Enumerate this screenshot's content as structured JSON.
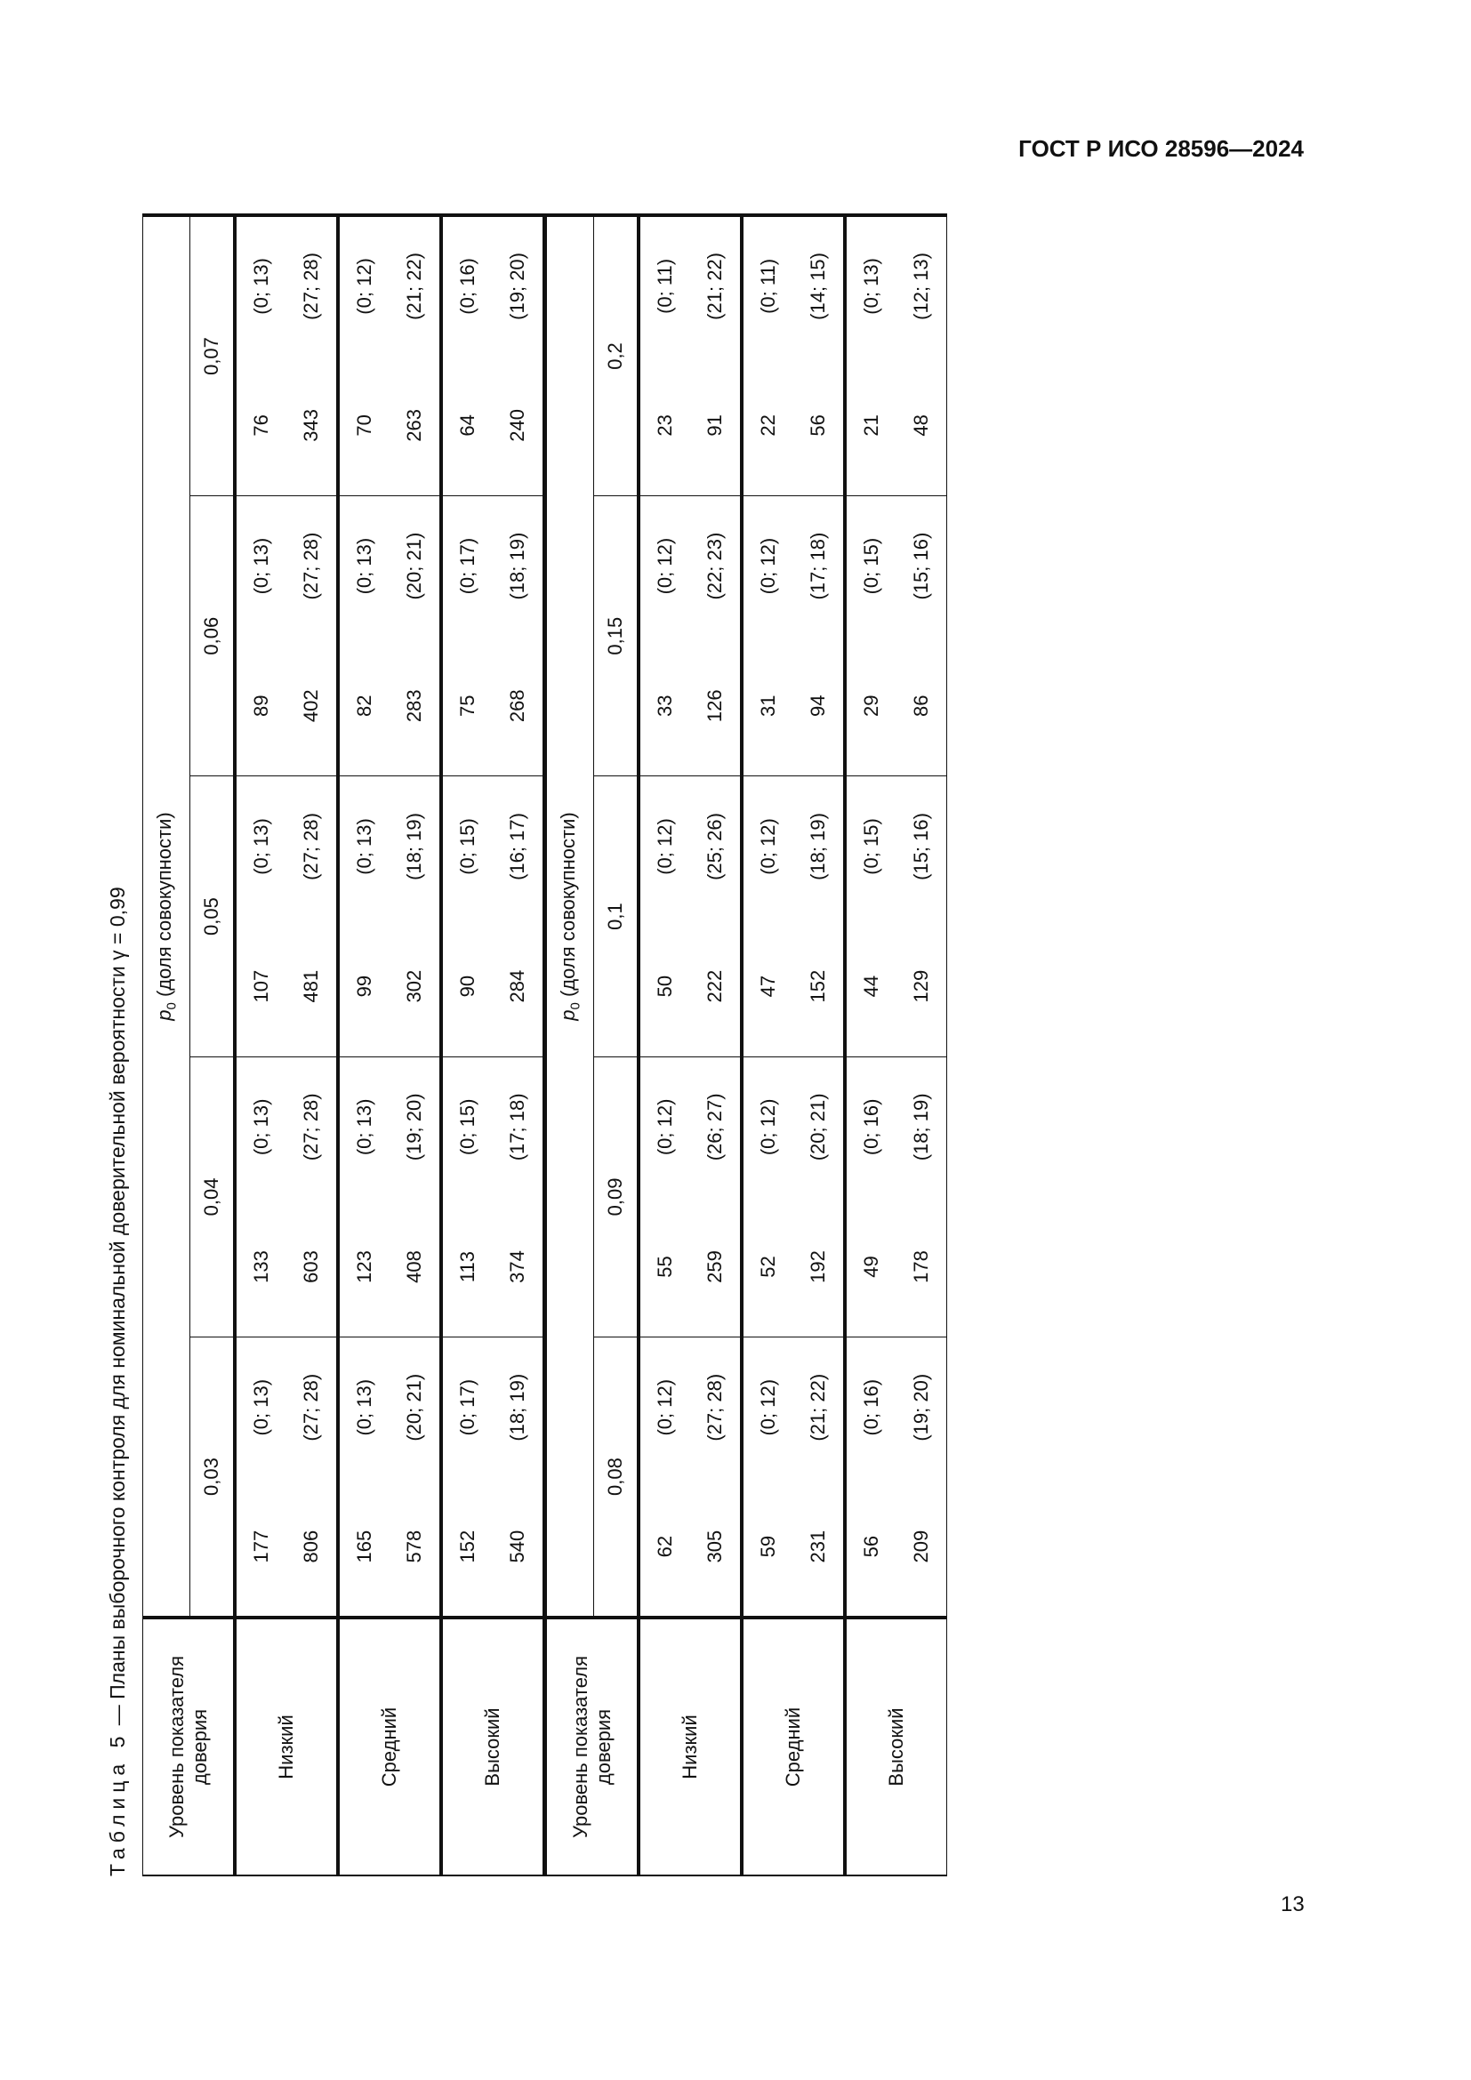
{
  "doc_header": "ГОСТ Р ИСО 28596—2024",
  "page_number": "13",
  "caption": {
    "label": "Таблица 5",
    "text": " — Планы выборочного контроля для номинальной доверительной вероятности γ = 0,99"
  },
  "level_header": "Уровень показателя доверия",
  "p_label": {
    "symbol": "p",
    "subscript": "0",
    "text": " (доля совокупности)"
  },
  "tables": [
    {
      "p_values": [
        "0,03",
        "0,04",
        "0,05",
        "0,06",
        "0,07"
      ],
      "rows": [
        {
          "level": "Низкий",
          "line1": [
            "177",
            "(0; 13)",
            "133",
            "(0; 13)",
            "107",
            "(0; 13)",
            "89",
            "(0; 13)",
            "76",
            "(0; 13)"
          ],
          "line2": [
            "806",
            "(27; 28)",
            "603",
            "(27; 28)",
            "481",
            "(27; 28)",
            "402",
            "(27; 28)",
            "343",
            "(27; 28)"
          ]
        },
        {
          "level": "Средний",
          "line1": [
            "165",
            "(0; 13)",
            "123",
            "(0; 13)",
            "99",
            "(0; 13)",
            "82",
            "(0; 13)",
            "70",
            "(0; 12)"
          ],
          "line2": [
            "578",
            "(20; 21)",
            "408",
            "(19; 20)",
            "302",
            "(18; 19)",
            "283",
            "(20; 21)",
            "263",
            "(21; 22)"
          ]
        },
        {
          "level": "Высокий",
          "line1": [
            "152",
            "(0; 17)",
            "113",
            "(0; 15)",
            "90",
            "(0; 15)",
            "75",
            "(0; 17)",
            "64",
            "(0; 16)"
          ],
          "line2": [
            "540",
            "(18; 19)",
            "374",
            "(17; 18)",
            "284",
            "(16; 17)",
            "268",
            "(18; 19)",
            "240",
            "(19; 20)"
          ]
        }
      ]
    },
    {
      "p_values": [
        "0,08",
        "0,09",
        "0,1",
        "0,15",
        "0,2"
      ],
      "rows": [
        {
          "level": "Низкий",
          "line1": [
            "62",
            "(0; 12)",
            "55",
            "(0; 12)",
            "50",
            "(0; 12)",
            "33",
            "(0; 12)",
            "23",
            "(0; 11)"
          ],
          "line2": [
            "305",
            "(27; 28)",
            "259",
            "(26; 27)",
            "222",
            "(25; 26)",
            "126",
            "(22; 23)",
            "91",
            "(21; 22)"
          ]
        },
        {
          "level": "Средний",
          "line1": [
            "59",
            "(0; 12)",
            "52",
            "(0; 12)",
            "47",
            "(0; 12)",
            "31",
            "(0; 12)",
            "22",
            "(0; 11)"
          ],
          "line2": [
            "231",
            "(21; 22)",
            "192",
            "(20; 21)",
            "152",
            "(18; 19)",
            "94",
            "(17; 18)",
            "56",
            "(14; 15)"
          ]
        },
        {
          "level": "Высокий",
          "line1": [
            "56",
            "(0; 16)",
            "49",
            "(0; 16)",
            "44",
            "(0; 15)",
            "29",
            "(0; 15)",
            "21",
            "(0; 13)"
          ],
          "line2": [
            "209",
            "(19; 20)",
            "178",
            "(18; 19)",
            "129",
            "(15; 16)",
            "86",
            "(15; 16)",
            "48",
            "(12; 13)"
          ]
        }
      ]
    }
  ]
}
